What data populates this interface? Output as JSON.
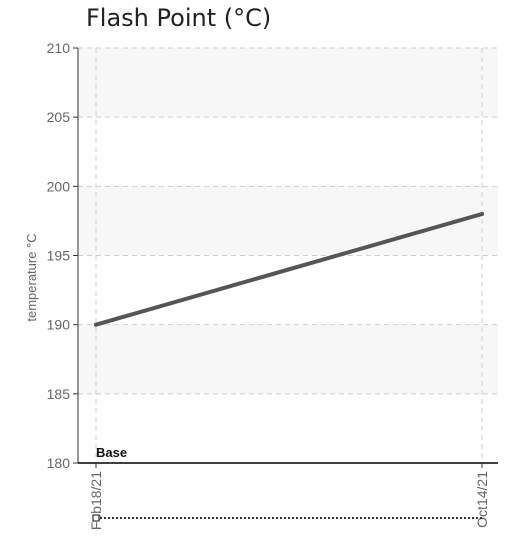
{
  "chart_data": {
    "type": "line",
    "title": "Flash Point (°C)",
    "ylabel": "temperature °C",
    "xlabel": "",
    "ylim": [
      180,
      210
    ],
    "yticks": [
      180,
      185,
      190,
      195,
      200,
      205,
      210
    ],
    "x": [
      "Feb18/21",
      "Oct14/21"
    ],
    "series": [
      {
        "values": [
          190,
          198
        ],
        "color": "#555555"
      }
    ],
    "annotation": "Base",
    "grid": true,
    "legend": "none",
    "band_color": "#f7f7f7"
  }
}
